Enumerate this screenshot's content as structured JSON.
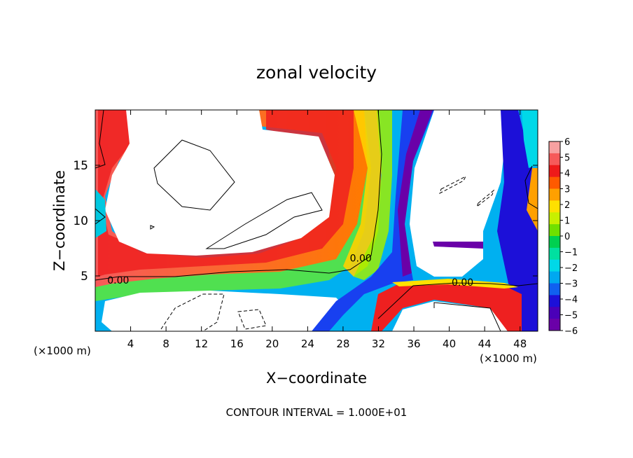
{
  "chart_data": {
    "type": "heatmap",
    "title": "zonal velocity",
    "xlabel": "X−coordinate",
    "ylabel": "Z−coordinate",
    "x_unit": "(×1000 m)",
    "x_unit_right": "(×1000 m)",
    "footer": "CONTOUR INTERVAL = 1.000E+01",
    "xlim": [
      0,
      50
    ],
    "ylim": [
      0,
      20
    ],
    "x_ticks": [
      4,
      8,
      12,
      16,
      20,
      24,
      28,
      32,
      36,
      40,
      44,
      48
    ],
    "x_tick_labels": [
      "4",
      "8",
      "12",
      "16",
      "20",
      "24",
      "28",
      "32",
      "36",
      "40",
      "44",
      "48"
    ],
    "y_ticks": [
      5,
      10,
      15
    ],
    "y_tick_labels": [
      "5",
      "10",
      "15"
    ],
    "colorbar": {
      "min": -6,
      "max": 6,
      "ticks": [
        6,
        5,
        4,
        3,
        2,
        1,
        0,
        -1,
        -2,
        -3,
        -4,
        -5,
        -6
      ],
      "tick_labels": [
        "6",
        "5",
        "4",
        "3",
        "2",
        "1",
        "0",
        "−1",
        "−2",
        "−3",
        "−4",
        "−5",
        "−6"
      ],
      "colors": [
        "#f7a1a1",
        "#f65a5a",
        "#ee1a1a",
        "#ff5a00",
        "#ffa000",
        "#ffe000",
        "#c8f000",
        "#70e000",
        "#00d050",
        "#00e0a0",
        "#00d8e8",
        "#00a8f0",
        "#1060f0",
        "#1c10d8",
        "#4a00b8",
        "#6a00a8"
      ]
    },
    "contour_labels": [
      {
        "text": "0.00",
        "x": 2.6,
        "y": 4.3
      },
      {
        "text": "0.00",
        "x": 30.0,
        "y": 6.3
      },
      {
        "text": "0.00",
        "x": 41.5,
        "y": 4.1
      }
    ]
  }
}
